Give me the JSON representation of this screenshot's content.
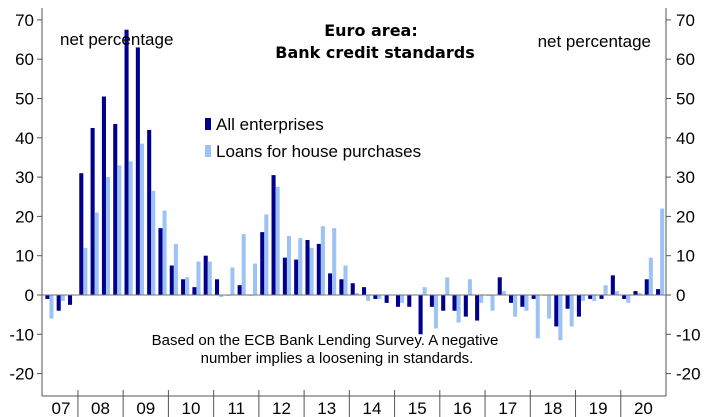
{
  "chart_data": {
    "type": "bar",
    "title_lines": [
      "Euro area:",
      "Bank credit standards"
    ],
    "unit_left": "net percentage",
    "unit_right": "net percentage",
    "note_lines": [
      "Based on the ECB Bank Lending Survey. A negative",
      "number implies a loosening in standards."
    ],
    "ylim": [
      -22,
      70
    ],
    "yticks": [
      70,
      60,
      50,
      40,
      30,
      20,
      10,
      0,
      -10,
      -20
    ],
    "year_labels": [
      "07",
      "08",
      "09",
      "10",
      "11",
      "12",
      "13",
      "14",
      "15",
      "16",
      "17",
      "18",
      "19",
      "20"
    ],
    "x_start_quarter": "2007Q2",
    "colors": {
      "series1": "#00008B",
      "series2": "#9DC3F5",
      "axis": "#555555"
    },
    "legend_position": "center",
    "series": [
      {
        "name": "All enterprises",
        "values": [
          -1,
          -4,
          -2.5,
          31,
          42.5,
          50.5,
          43.5,
          67.5,
          63,
          42,
          17,
          7.5,
          4,
          2,
          10,
          4,
          0,
          2.5,
          0,
          16,
          30.5,
          9.5,
          9,
          14,
          13,
          5.5,
          4,
          3,
          2,
          -1,
          -2,
          -3,
          -3,
          -10,
          -3,
          -4,
          -4,
          -5.5,
          -6.5,
          0,
          4.5,
          -2,
          -3,
          -1,
          0,
          -8,
          -3.5,
          -5.5,
          -1,
          -1,
          5,
          -1,
          1,
          4,
          1.5
        ]
      },
      {
        "name": "Loans for house purchases",
        "values": [
          -6,
          -1.5,
          0,
          12,
          21,
          30,
          33,
          34,
          38.5,
          26.5,
          21.5,
          13,
          4.5,
          8.5,
          8.5,
          -0.5,
          7,
          15.5,
          8,
          20.5,
          27.5,
          15,
          14.5,
          12,
          17.5,
          17,
          7.5,
          0.5,
          -1.5,
          -1,
          0,
          -2,
          0,
          2,
          -8.5,
          4.5,
          -7,
          4,
          -2,
          -4,
          1,
          -5.5,
          -4,
          -11,
          -6,
          -11.5,
          -8,
          -1.5,
          -1.5,
          2.5,
          1,
          -2,
          0.5,
          9.5,
          22
        ]
      }
    ]
  }
}
